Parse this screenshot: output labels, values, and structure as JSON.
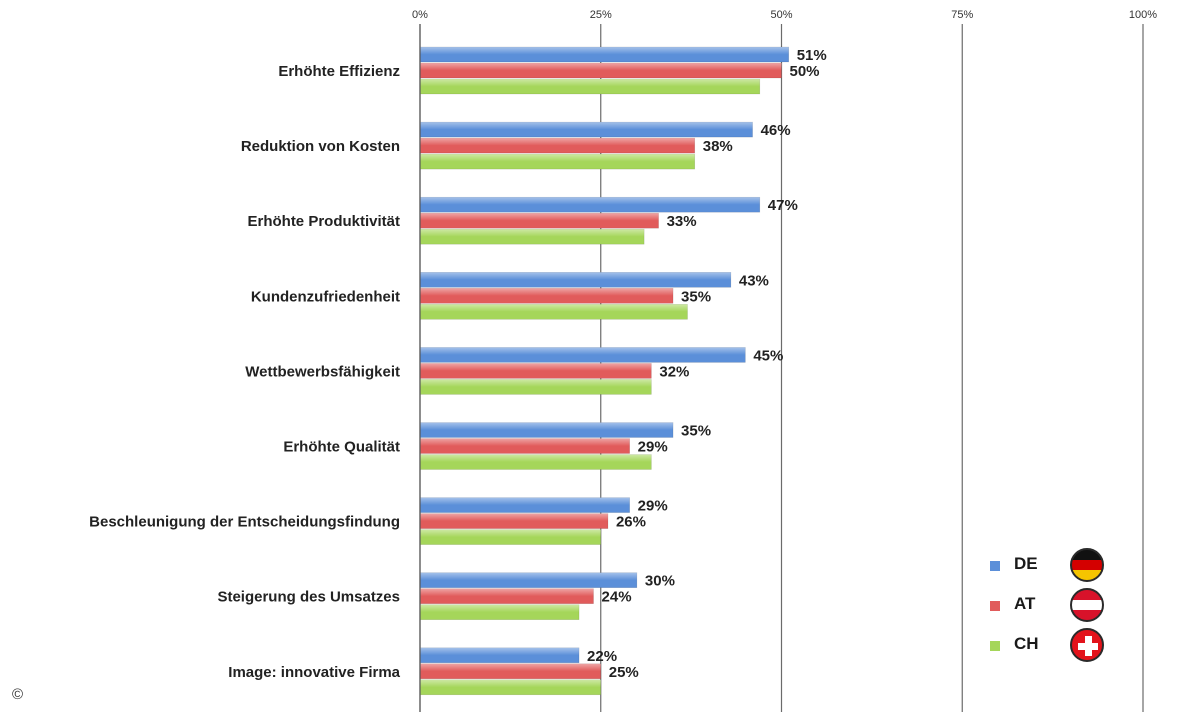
{
  "chart_data": {
    "type": "bar",
    "orientation": "horizontal",
    "categories": [
      "Erhöhte Effizienz",
      "Reduktion von Kosten",
      "Erhöhte Produktivität",
      "Kundenzufriedenheit",
      "Wettbewerbsfähigkeit",
      "Erhöhte Qualität",
      "Beschleunigung der Entscheidungsfindung",
      "Steigerung des Umsatzes",
      "Image: innovative Firma"
    ],
    "series": [
      {
        "name": "DE",
        "color": "#5b8fd9",
        "values": [
          51,
          46,
          47,
          43,
          45,
          35,
          29,
          30,
          22
        ],
        "labels": [
          "51%",
          "46%",
          "47%",
          "43%",
          "45%",
          "35%",
          "29%",
          "30%",
          "22%"
        ]
      },
      {
        "name": "AT",
        "color": "#e15b5b",
        "values": [
          50,
          38,
          33,
          35,
          32,
          29,
          26,
          24,
          25
        ],
        "labels": [
          "50%",
          "38%",
          "33%",
          "35%",
          "32%",
          "29%",
          "26%",
          "24%",
          "25%"
        ]
      },
      {
        "name": "CH",
        "color": "#a5d65a",
        "values": [
          47,
          38,
          31,
          37,
          32,
          32,
          25,
          22,
          25
        ],
        "labels": [
          "",
          "",
          "",
          "",
          "",
          "",
          "",
          "",
          ""
        ]
      }
    ],
    "xlim": [
      0,
      100
    ],
    "xticks": [
      "0%",
      "25%",
      "50%",
      "75%",
      "100%"
    ],
    "grid": true,
    "legend_position": "bottom-right"
  },
  "legend": {
    "items": [
      {
        "label": "DE",
        "color": "#5b8fd9",
        "flag": "germany-flag-icon"
      },
      {
        "label": "AT",
        "color": "#e15b5b",
        "flag": "austria-flag-icon"
      },
      {
        "label": "CH",
        "color": "#a5d65a",
        "flag": "switzerland-flag-icon"
      }
    ]
  },
  "copyright": "©"
}
